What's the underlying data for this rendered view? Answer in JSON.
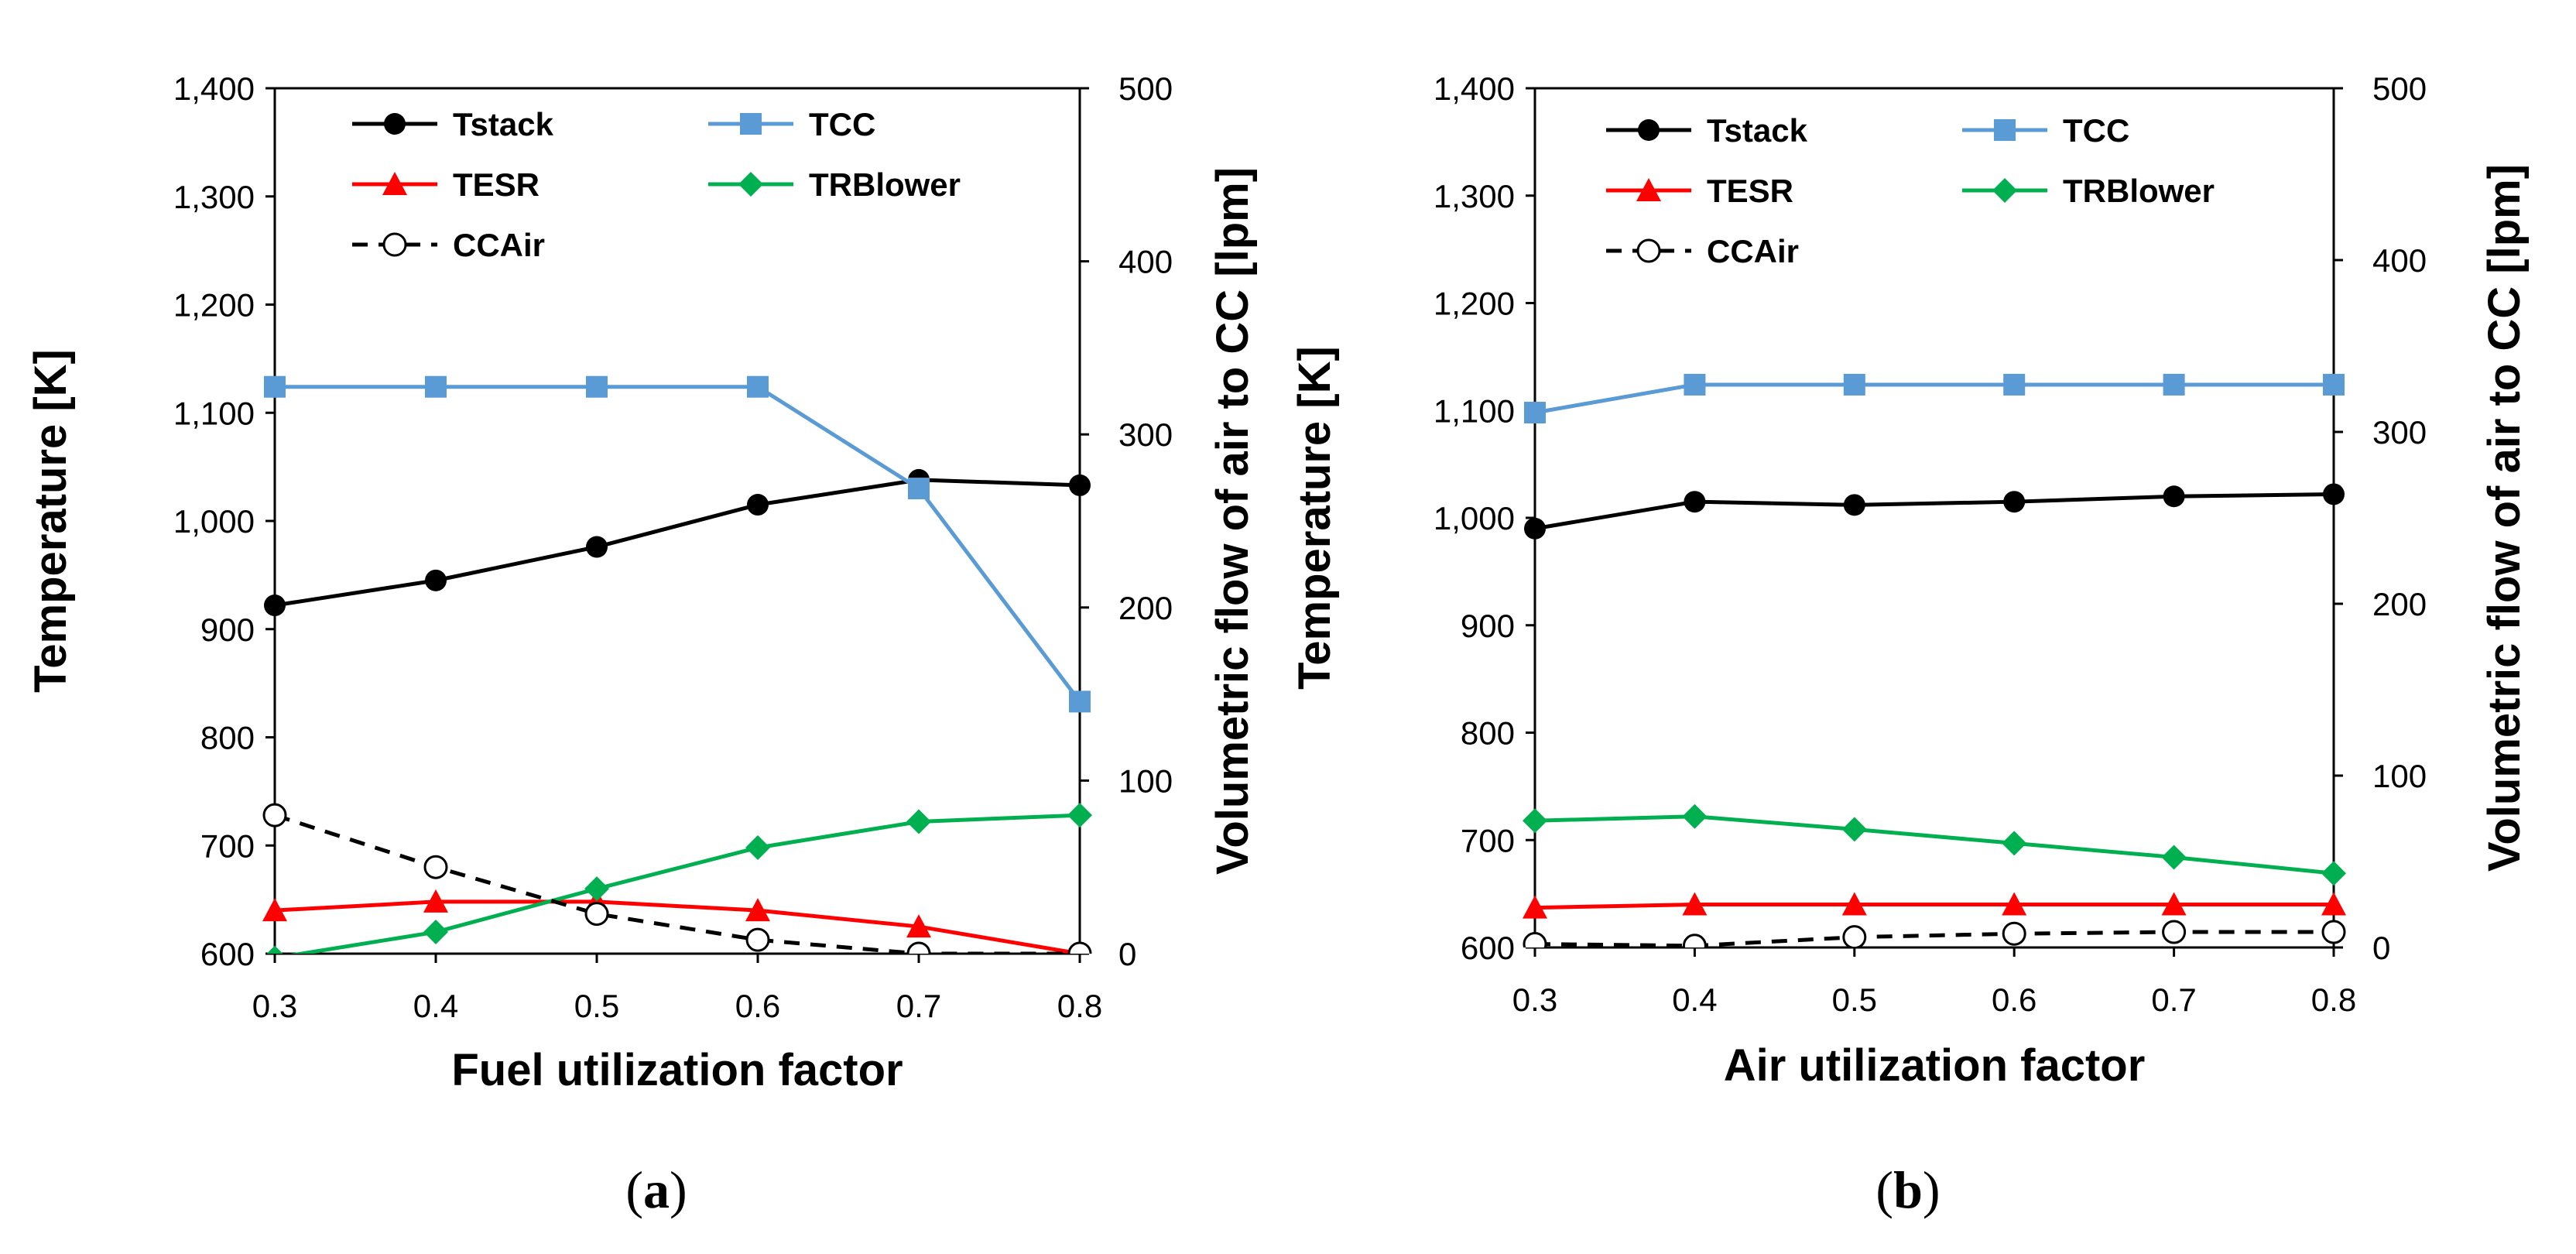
{
  "chart_data": [
    {
      "type": "line",
      "caption_letter": "a",
      "xlabel": "Fuel utilization factor",
      "ylabel": "Temperature [K]",
      "y2label": "Volumetric flow of air to CC [lpm]",
      "x": [
        0.3,
        0.4,
        0.5,
        0.6,
        0.7,
        0.8
      ],
      "x_ticks": [
        "0.3",
        "0.4",
        "0.5",
        "0.6",
        "0.7",
        "0.8"
      ],
      "xlim": [
        0.3,
        0.8
      ],
      "ylim": [
        600,
        1400
      ],
      "y_ticks": [
        "600",
        "700",
        "800",
        "900",
        "1,000",
        "1,100",
        "1,200",
        "1,300",
        "1,400"
      ],
      "y2lim": [
        0,
        500
      ],
      "y2_ticks": [
        "0",
        "100",
        "200",
        "300",
        "400",
        "500"
      ],
      "series": [
        {
          "name": "Tstack",
          "axis": "left",
          "color": "#000000",
          "marker": "circle",
          "dash": false,
          "values": [
            922,
            945,
            976,
            1015,
            1038,
            1033
          ]
        },
        {
          "name": "TCC",
          "axis": "left",
          "color": "#5B9BD5",
          "marker": "square",
          "dash": false,
          "values": [
            1124,
            1124,
            1124,
            1124,
            1030,
            833
          ]
        },
        {
          "name": "TESR",
          "axis": "left",
          "color": "#FF0000",
          "marker": "triangle",
          "dash": false,
          "values": [
            640,
            648,
            648,
            640,
            625,
            600
          ]
        },
        {
          "name": "TRBlower",
          "axis": "left",
          "color": "#00B050",
          "marker": "diamond",
          "dash": false,
          "values": [
            596,
            620,
            660,
            698,
            722,
            728
          ]
        },
        {
          "name": "CCAir",
          "axis": "right",
          "color": "#000000",
          "marker": "open-circle",
          "dash": true,
          "values": [
            80,
            50,
            23,
            8,
            0,
            0
          ]
        }
      ]
    },
    {
      "type": "line",
      "caption_letter": "b",
      "xlabel": "Air utilization factor",
      "ylabel": "Temperature [K]",
      "y2label": "Volumetric flow of air to CC [lpm]",
      "x": [
        0.3,
        0.4,
        0.5,
        0.6,
        0.7,
        0.8
      ],
      "x_ticks": [
        "0.3",
        "0.4",
        "0.5",
        "0.6",
        "0.7",
        "0.8"
      ],
      "xlim": [
        0.3,
        0.8
      ],
      "ylim": [
        600,
        1400
      ],
      "y_ticks": [
        "600",
        "700",
        "800",
        "900",
        "1,000",
        "1,100",
        "1,200",
        "1,300",
        "1,400"
      ],
      "y2lim": [
        0,
        500
      ],
      "y2_ticks": [
        "0",
        "100",
        "200",
        "300",
        "400",
        "500"
      ],
      "series": [
        {
          "name": "Tstack",
          "axis": "left",
          "color": "#000000",
          "marker": "circle",
          "dash": false,
          "values": [
            990,
            1015,
            1012,
            1015,
            1020,
            1022
          ]
        },
        {
          "name": "TCC",
          "axis": "left",
          "color": "#5B9BD5",
          "marker": "square",
          "dash": false,
          "values": [
            1098,
            1124,
            1124,
            1124,
            1124,
            1124
          ]
        },
        {
          "name": "TESR",
          "axis": "left",
          "color": "#FF0000",
          "marker": "triangle",
          "dash": false,
          "values": [
            637,
            640,
            640,
            640,
            640,
            640
          ]
        },
        {
          "name": "TRBlower",
          "axis": "left",
          "color": "#00B050",
          "marker": "diamond",
          "dash": false,
          "values": [
            718,
            722,
            710,
            697,
            684,
            669
          ]
        },
        {
          "name": "CCAir",
          "axis": "right",
          "color": "#000000",
          "marker": "open-circle",
          "dash": true,
          "values": [
            2,
            1,
            6,
            8,
            9,
            9
          ]
        }
      ]
    }
  ]
}
